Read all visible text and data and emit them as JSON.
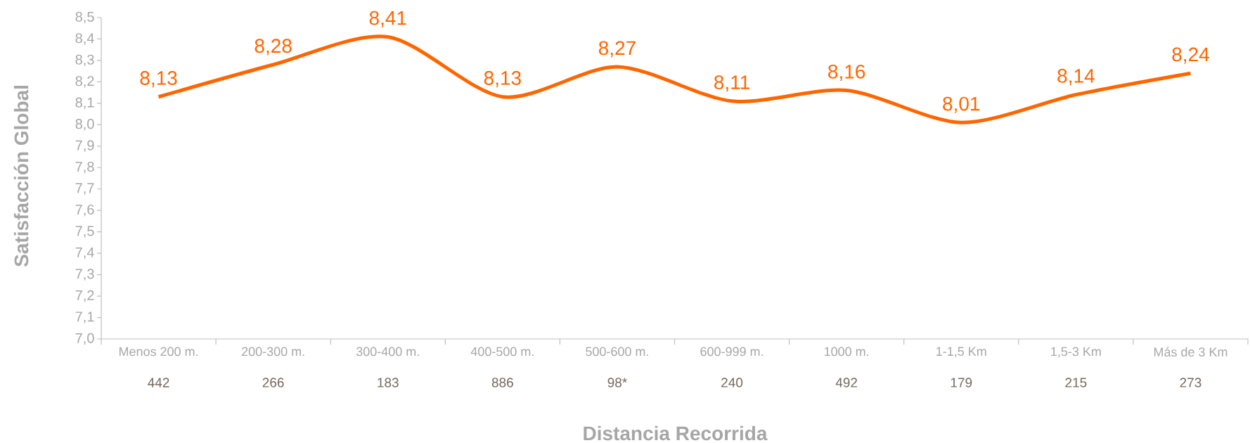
{
  "chart_data": {
    "type": "line",
    "xlabel": "Distancia Recorrida",
    "ylabel": "Satisfacción Global",
    "categories": [
      "Menos 200 m.",
      "200-300 m.",
      "300-400 m.",
      "400-500 m.",
      "500-600 m.",
      "600-999 m.",
      "1000 m.",
      "1-1,5 Km",
      "1,5-3 Km",
      "Más de 3 Km"
    ],
    "series": [
      {
        "color": "#ff6600",
        "values": [
          8.13,
          8.28,
          8.41,
          8.13,
          8.27,
          8.11,
          8.16,
          8.01,
          8.14,
          8.24
        ],
        "value_labels": [
          "8,13",
          "8,28",
          "8,41",
          "8,13",
          "8,27",
          "8,11",
          "8,16",
          "8,01",
          "8,14",
          "8,24"
        ]
      }
    ],
    "ylim": [
      7.0,
      8.5
    ],
    "yticks": [
      {
        "value": 7.0,
        "label": "7,0"
      },
      {
        "value": 7.1,
        "label": "7,1"
      },
      {
        "value": 7.2,
        "label": "7,2"
      },
      {
        "value": 7.3,
        "label": "7,3"
      },
      {
        "value": 7.4,
        "label": "7,4"
      },
      {
        "value": 7.5,
        "label": "7,5"
      },
      {
        "value": 7.6,
        "label": "7,6"
      },
      {
        "value": 7.7,
        "label": "7,7"
      },
      {
        "value": 7.8,
        "label": "7,8"
      },
      {
        "value": 7.9,
        "label": "7,9"
      },
      {
        "value": 8.0,
        "label": "8,0"
      },
      {
        "value": 8.1,
        "label": "8,1"
      },
      {
        "value": 8.2,
        "label": "8,2"
      },
      {
        "value": 8.3,
        "label": "8,3"
      },
      {
        "value": 8.4,
        "label": "8,4"
      },
      {
        "value": 8.5,
        "label": "8,5"
      }
    ],
    "annotations": [
      "442",
      "266",
      "183",
      "886",
      "98*",
      "240",
      "492",
      "179",
      "215",
      "273"
    ],
    "grid": false,
    "marker": "none",
    "line_style": "solid"
  }
}
